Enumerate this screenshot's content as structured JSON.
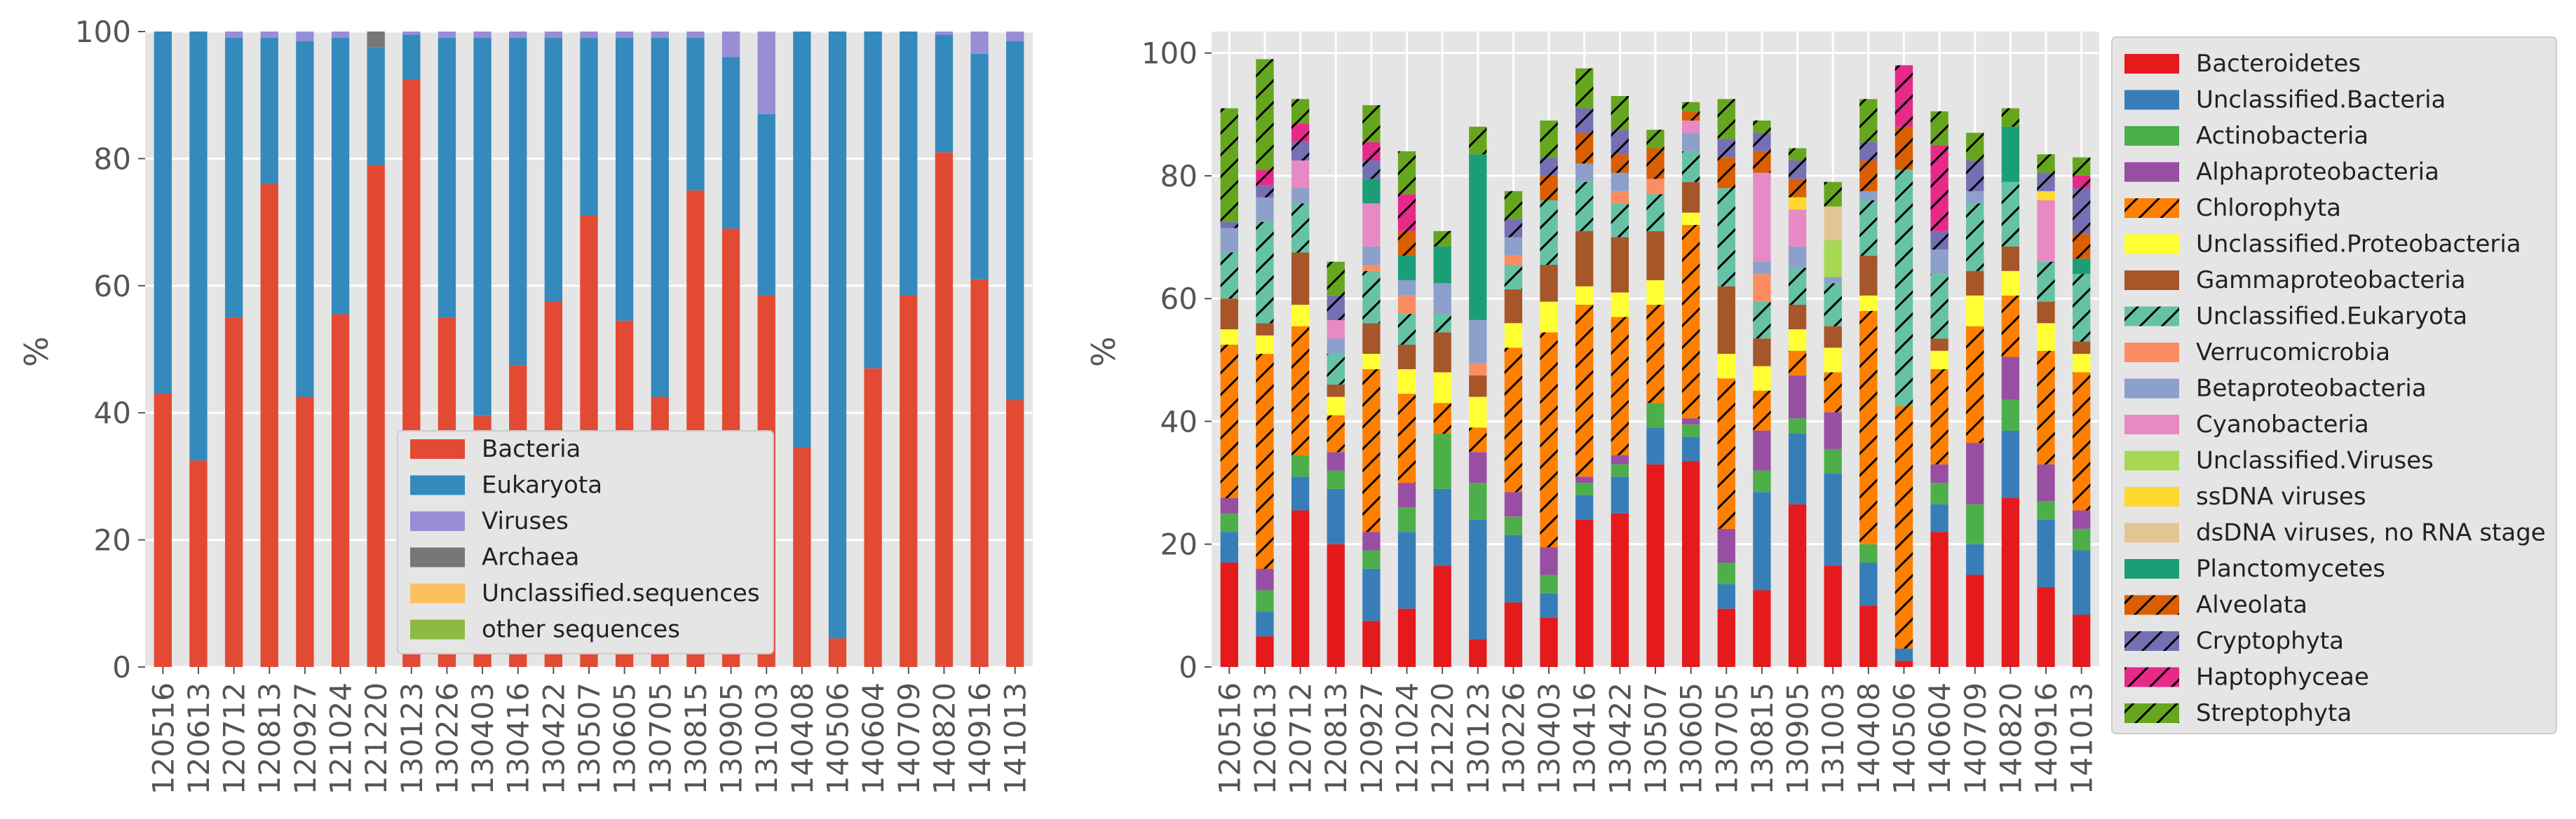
{
  "chart_data": [
    {
      "type": "bar",
      "stacked": true,
      "ylabel": "%",
      "ylim": [
        0,
        100
      ],
      "yticks": [
        0,
        20,
        40,
        60,
        80,
        100
      ],
      "grid": true,
      "legend_position": "lower-center",
      "categories": [
        "120516",
        "120613",
        "120712",
        "120813",
        "120927",
        "121024",
        "121220",
        "130123",
        "130226",
        "130403",
        "130416",
        "130422",
        "130507",
        "130605",
        "130705",
        "130815",
        "130905",
        "131003",
        "140408",
        "140506",
        "140604",
        "140709",
        "140820",
        "140916",
        "141013"
      ],
      "series": [
        {
          "name": "Bacteria",
          "color": "#e24a33",
          "values": [
            43,
            32.5,
            55,
            76,
            42.5,
            55.5,
            79,
            92.5,
            55,
            39.5,
            47.5,
            57.5,
            71,
            54.5,
            42.5,
            75,
            69,
            58.5,
            34.5,
            4.5,
            47,
            58.5,
            81,
            61,
            42
          ]
        },
        {
          "name": "Eukaryota",
          "color": "#348abd",
          "values": [
            57,
            67.5,
            44,
            23,
            56,
            43.5,
            18.5,
            7,
            44,
            59.5,
            51.5,
            41.5,
            28,
            44.5,
            56.5,
            24,
            27,
            28.5,
            65.5,
            95.5,
            53,
            41.5,
            18.5,
            35.5,
            56.5
          ]
        },
        {
          "name": "Viruses",
          "color": "#988ed5",
          "values": [
            0,
            0,
            1,
            1,
            1.5,
            1,
            0,
            0.5,
            1,
            1,
            1,
            1,
            1,
            1,
            1,
            1,
            4,
            13,
            0,
            0,
            0,
            0,
            0.5,
            3.5,
            1.5
          ]
        },
        {
          "name": "Archaea",
          "color": "#777777",
          "values": [
            0,
            0,
            0,
            0,
            0,
            0,
            2.5,
            0,
            0,
            0,
            0,
            0,
            0,
            0,
            0,
            0,
            0,
            0,
            0,
            0,
            0,
            0,
            0,
            0,
            0
          ]
        },
        {
          "name": "Unclassified.sequences",
          "color": "#fbc15e",
          "values": [
            0,
            0,
            0,
            0,
            0,
            0,
            0,
            0,
            0,
            0,
            0,
            0,
            0,
            0,
            0,
            0,
            0,
            0,
            0,
            0,
            0,
            0,
            0,
            0,
            0
          ]
        },
        {
          "name": "other sequences",
          "color": "#8eba42",
          "values": [
            0,
            0,
            0,
            0,
            0,
            0,
            0,
            0,
            0,
            0,
            0,
            0,
            0,
            0,
            0,
            0,
            0,
            0,
            0,
            0,
            0,
            0,
            0,
            0,
            0
          ]
        }
      ]
    },
    {
      "type": "bar",
      "stacked": true,
      "ylabel": "%",
      "ylim": [
        0,
        103.5
      ],
      "yticks": [
        0,
        20,
        40,
        60,
        80,
        100
      ],
      "grid": true,
      "legend_position": "outside-right",
      "categories": [
        "120516",
        "120613",
        "120712",
        "120813",
        "120927",
        "121024",
        "121220",
        "130123",
        "130226",
        "130403",
        "130416",
        "130422",
        "130507",
        "130605",
        "130705",
        "130815",
        "130905",
        "131003",
        "140408",
        "140506",
        "140604",
        "140709",
        "140820",
        "140916",
        "141013"
      ],
      "series": [
        {
          "name": "Bacteroidetes",
          "color": "#e41a1c",
          "hatch": false,
          "values": [
            17,
            5,
            25.5,
            20,
            7.5,
            9.5,
            16.5,
            4.5,
            10.5,
            8,
            24,
            25,
            33,
            33.5,
            9.5,
            12.5,
            26.5,
            16.5,
            10,
            1,
            22,
            15,
            27.5,
            13,
            8.5
          ]
        },
        {
          "name": "Unclassified.Bacteria",
          "color": "#377eb8",
          "hatch": false,
          "values": [
            5,
            4,
            5.5,
            9,
            8.5,
            12.5,
            12.5,
            19.5,
            11,
            4,
            4,
            6,
            6,
            4,
            4,
            16,
            11.5,
            15,
            7,
            2,
            4.5,
            5,
            11,
            11,
            10.5
          ]
        },
        {
          "name": "Actinobacteria",
          "color": "#4daf4a",
          "hatch": false,
          "values": [
            3,
            3.5,
            3.5,
            3,
            3,
            4,
            9,
            6,
            3,
            3,
            2,
            2,
            4,
            2,
            3.5,
            3.5,
            2.5,
            4,
            3,
            0,
            3.5,
            6.5,
            5,
            3,
            3.5
          ]
        },
        {
          "name": "Alphaproteobacteria",
          "color": "#984ea3",
          "hatch": false,
          "values": [
            2.5,
            3.5,
            0,
            3,
            3,
            4,
            0,
            5,
            4,
            4.5,
            1,
            1.5,
            0,
            1,
            5.5,
            6.5,
            7,
            6,
            0,
            0,
            3,
            10,
            7,
            6,
            3
          ]
        },
        {
          "name": "Chlorophyta",
          "color": "#ff7f00",
          "hatch": true,
          "values": [
            25,
            35,
            21,
            6,
            26.5,
            14.5,
            5,
            4,
            23.5,
            35,
            28,
            22.5,
            16,
            31.5,
            24.5,
            6.5,
            4,
            6.5,
            38,
            39.5,
            15.5,
            19,
            10,
            18.5,
            22.5
          ]
        },
        {
          "name": "Unclassified.Proteobacteria",
          "color": "#ffff33",
          "hatch": false,
          "values": [
            2.5,
            3,
            3.5,
            3,
            2.5,
            4,
            5,
            5,
            4,
            5,
            3,
            4,
            4,
            2,
            4,
            4,
            3.5,
            4,
            2.5,
            0,
            3,
            5,
            4,
            4.5,
            3
          ]
        },
        {
          "name": "Gammaproteobacteria",
          "color": "#a65628",
          "hatch": false,
          "values": [
            5,
            2,
            8.5,
            2,
            5,
            4,
            6.5,
            3.5,
            5.5,
            6,
            9,
            9,
            8,
            5,
            11,
            4.5,
            4,
            3.5,
            6.5,
            0,
            2,
            4,
            4,
            3.5,
            2
          ]
        },
        {
          "name": "Unclassified.Eukaryota",
          "color": "#66c2a5",
          "hatch": true,
          "values": [
            7.5,
            16.5,
            8,
            5,
            8.5,
            5,
            3,
            0,
            4,
            10.5,
            8,
            5.5,
            6,
            5,
            16,
            6,
            6,
            7,
            9,
            38.5,
            10.5,
            11,
            10.5,
            6.5,
            11
          ]
        },
        {
          "name": "Verrucomicrobia",
          "color": "#fc8d62",
          "hatch": false,
          "values": [
            0,
            0,
            0,
            0,
            1,
            3,
            0,
            2,
            1.5,
            0,
            0,
            2,
            2.5,
            0,
            0,
            4.5,
            0,
            0,
            0,
            0,
            0,
            0,
            0,
            0,
            0
          ]
        },
        {
          "name": "Betaproteobacteria",
          "color": "#8da0cb",
          "hatch": false,
          "values": [
            4,
            4,
            2.5,
            2.5,
            3,
            2.5,
            5,
            7,
            3,
            0,
            3,
            3,
            0,
            3,
            0,
            2,
            3.5,
            1,
            1.5,
            0,
            4,
            2,
            0,
            0,
            0
          ]
        },
        {
          "name": "Cyanobacteria",
          "color": "#e78ac3",
          "hatch": false,
          "values": [
            0,
            0,
            4.5,
            3,
            7,
            0,
            0,
            0,
            0,
            0,
            0,
            0,
            0,
            2,
            0,
            14.5,
            6,
            0,
            0,
            0,
            0,
            0,
            0,
            10,
            0
          ]
        },
        {
          "name": "Unclassified.Viruses",
          "color": "#a6d854",
          "hatch": false,
          "values": [
            0,
            0,
            0,
            0,
            0,
            0,
            0,
            0,
            0,
            0,
            0,
            0,
            0,
            0,
            0,
            0,
            0,
            6,
            0,
            0,
            0,
            0,
            0,
            0,
            0
          ]
        },
        {
          "name": "ssDNA viruses",
          "color": "#ffd92f",
          "hatch": false,
          "values": [
            0,
            0,
            0,
            0,
            0,
            0,
            0,
            0,
            0,
            0,
            0,
            0,
            0,
            0,
            0,
            0,
            2,
            0,
            0,
            0,
            0,
            0,
            0,
            1.5,
            0
          ]
        },
        {
          "name": "dsDNA viruses, no RNA stage",
          "color": "#e5c494",
          "hatch": false,
          "values": [
            0,
            0,
            0,
            0,
            0,
            0,
            0,
            0,
            0,
            0,
            0,
            0,
            0,
            0,
            0,
            0,
            0,
            5.5,
            0,
            0,
            0,
            0,
            0,
            0,
            0
          ]
        },
        {
          "name": "Planctomycetes",
          "color": "#1b9e77",
          "hatch": false,
          "values": [
            0,
            0,
            0,
            0,
            4,
            4,
            6,
            27,
            0,
            0,
            0,
            0,
            0,
            0,
            0,
            0,
            0,
            0,
            0,
            0,
            0,
            0,
            9,
            0,
            2.5
          ]
        },
        {
          "name": "Alveolata",
          "color": "#d95f02",
          "hatch": true,
          "values": [
            0,
            0,
            0,
            0,
            0,
            4,
            0,
            0,
            0,
            4,
            5,
            3,
            5,
            1.5,
            5,
            3.5,
            3,
            0,
            5,
            7,
            0,
            0,
            0,
            0,
            4
          ]
        },
        {
          "name": "Cryptophyta",
          "color": "#7570b3",
          "hatch": true,
          "values": [
            1,
            2,
            3,
            4,
            3,
            0,
            0,
            0,
            3,
            3,
            4,
            4,
            0,
            0,
            3,
            3,
            3,
            0,
            3,
            0,
            3,
            5,
            0,
            3,
            7.5
          ]
        },
        {
          "name": "Haptophyceae",
          "color": "#e7298a",
          "hatch": true,
          "values": [
            0,
            2.5,
            3,
            0,
            3,
            6,
            0,
            0,
            0,
            0,
            0,
            0,
            0,
            0,
            0,
            0,
            0,
            0,
            0,
            10,
            14,
            0,
            0,
            0,
            2
          ]
        },
        {
          "name": "Streptophyta",
          "color": "#66a61e",
          "hatch": true,
          "values": [
            18.5,
            18,
            4,
            5.5,
            6,
            7,
            2.5,
            4.5,
            4.5,
            6,
            6.5,
            5.5,
            3,
            1.5,
            6.5,
            2,
            2,
            4,
            7,
            0,
            5.5,
            4.5,
            3,
            3,
            3
          ]
        }
      ]
    }
  ]
}
